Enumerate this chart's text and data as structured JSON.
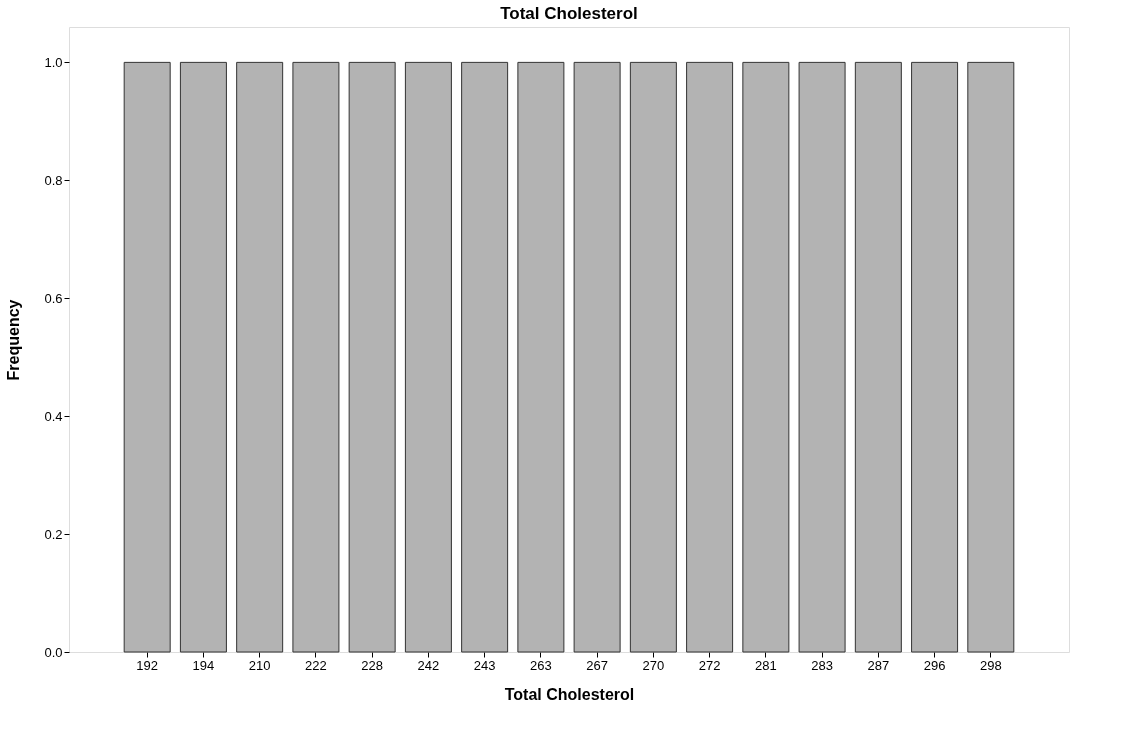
{
  "chart_data": {
    "type": "bar",
    "title": "Total Cholesterol",
    "xlabel": "Total Cholesterol",
    "ylabel": "Frequency",
    "categories": [
      "192",
      "194",
      "210",
      "222",
      "228",
      "242",
      "243",
      "263",
      "267",
      "270",
      "272",
      "281",
      "283",
      "287",
      "296",
      "298"
    ],
    "values": [
      1,
      1,
      1,
      1,
      1,
      1,
      1,
      1,
      1,
      1,
      1,
      1,
      1,
      1,
      1,
      1
    ],
    "color": "#b3b3b3",
    "ylim": [
      0,
      1.06
    ],
    "yticks": [
      {
        "value": 0,
        "label": "0.0"
      },
      0.2,
      0.4,
      0.6,
      0.8,
      {
        "value": 1,
        "label": "1.0"
      }
    ],
    "grid": false
  }
}
